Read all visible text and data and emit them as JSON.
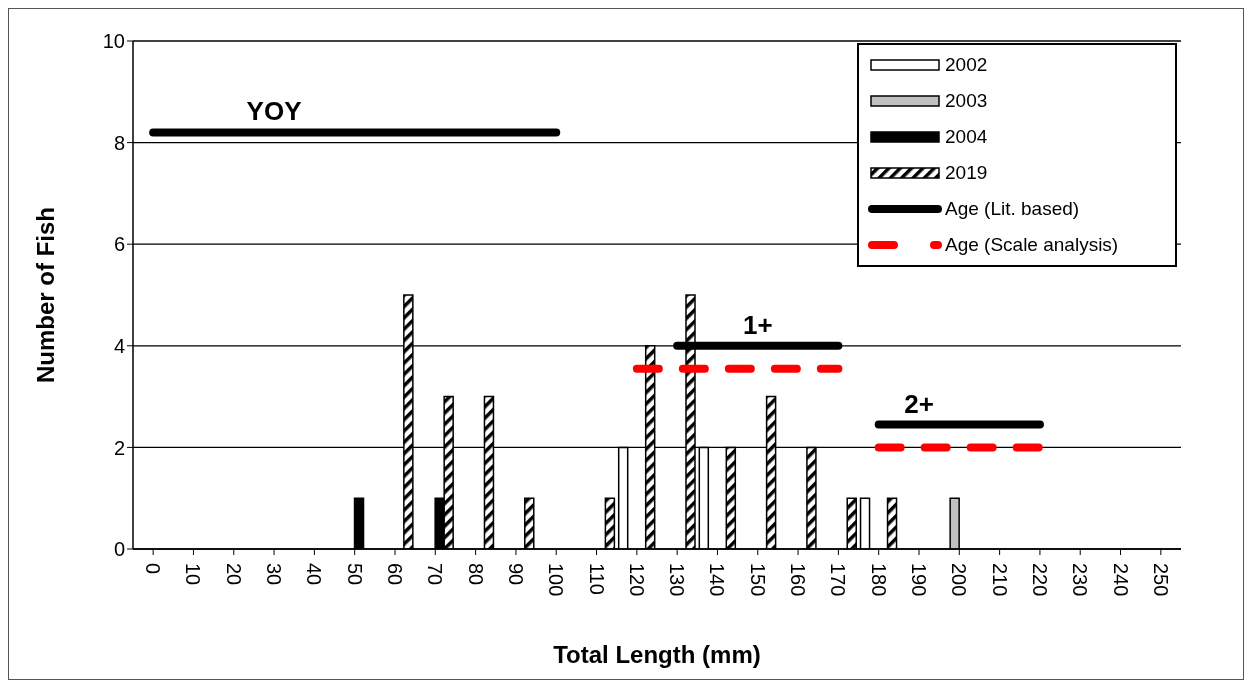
{
  "chart_data": {
    "type": "bar",
    "xlabel": "Total Length (mm)",
    "ylabel": "Number of Fish",
    "categories": [
      "0",
      "10",
      "20",
      "30",
      "40",
      "50",
      "60",
      "70",
      "80",
      "90",
      "100",
      "110",
      "120",
      "130",
      "140",
      "150",
      "160",
      "170",
      "180",
      "190",
      "200",
      "210",
      "220",
      "230",
      "240",
      "250"
    ],
    "series": [
      {
        "name": "2002",
        "color": "#ffffff",
        "values": [
          0,
          0,
          0,
          0,
          0,
          0,
          0,
          0,
          0,
          0,
          0,
          0,
          2,
          0,
          2,
          0,
          0,
          0,
          1,
          0,
          0,
          0,
          0,
          0,
          0,
          0
        ]
      },
      {
        "name": "2003",
        "color": "#c0c0c0",
        "values": [
          0,
          0,
          0,
          0,
          0,
          0,
          0,
          0,
          0,
          0,
          0,
          0,
          0,
          0,
          0,
          0,
          0,
          0,
          0,
          0,
          1,
          0,
          0,
          0,
          0,
          0
        ]
      },
      {
        "name": "2004",
        "color": "#000000",
        "values": [
          0,
          0,
          0,
          0,
          0,
          1,
          0,
          1,
          0,
          0,
          0,
          0,
          0,
          0,
          0,
          0,
          0,
          0,
          0,
          0,
          0,
          0,
          0,
          0,
          0,
          0
        ]
      },
      {
        "name": "2019",
        "color": "#000000",
        "values": [
          0,
          0,
          0,
          0,
          0,
          0,
          5,
          3,
          3,
          1,
          0,
          1,
          4,
          5,
          2,
          3,
          2,
          1,
          1,
          0,
          0,
          0,
          0,
          0,
          0,
          0
        ]
      },
      {
        "type": "line",
        "name": "Age (Lit. based)",
        "color": "#000000",
        "line_style": "solid",
        "values": [
          8.2,
          8.2,
          8.2,
          8.2,
          8.2,
          8.2,
          8.2,
          8.2,
          8.2,
          8.2,
          8.2,
          null,
          null,
          null,
          null,
          null,
          null,
          null,
          null,
          null,
          null,
          null,
          null,
          null,
          null,
          null
        ]
      },
      {
        "type": "line",
        "color": "#000000",
        "line_style": "solid",
        "values": [
          null,
          null,
          null,
          null,
          null,
          null,
          null,
          null,
          null,
          null,
          null,
          null,
          null,
          4,
          4,
          4,
          4,
          4,
          null,
          null,
          null,
          null,
          null,
          null,
          null,
          null
        ]
      },
      {
        "type": "line",
        "color": "#000000",
        "line_style": "solid",
        "values": [
          null,
          null,
          null,
          null,
          null,
          null,
          null,
          null,
          null,
          null,
          null,
          null,
          null,
          null,
          null,
          null,
          null,
          null,
          2.45,
          2.45,
          2.45,
          2.45,
          2.45,
          null,
          null,
          null
        ]
      },
      {
        "type": "line",
        "name": "Age (Scale analysis)",
        "color": "#ff0000",
        "line_style": "dashed",
        "values": [
          null,
          null,
          null,
          null,
          null,
          null,
          null,
          null,
          null,
          null,
          null,
          null,
          3.55,
          3.55,
          3.55,
          3.55,
          3.55,
          3.55,
          null,
          null,
          null,
          null,
          null,
          null,
          null,
          null
        ]
      },
      {
        "type": "line",
        "color": "#ff0000",
        "line_style": "dashed",
        "values": [
          null,
          null,
          null,
          null,
          null,
          null,
          null,
          null,
          null,
          null,
          null,
          null,
          null,
          null,
          null,
          null,
          null,
          null,
          2,
          2,
          2,
          2,
          2,
          null,
          null,
          null
        ]
      }
    ],
    "ylim": [
      0,
      10
    ],
    "yticks": [
      0,
      2,
      4,
      6,
      8,
      10
    ],
    "grid": "y",
    "legend": "top right",
    "annotations": [
      {
        "text": "YOY",
        "x": "30",
        "y": 8.2
      },
      {
        "text": "1+",
        "x": "150",
        "y": 4
      },
      {
        "text": "2+",
        "x": "190",
        "y": 2.45
      }
    ]
  }
}
